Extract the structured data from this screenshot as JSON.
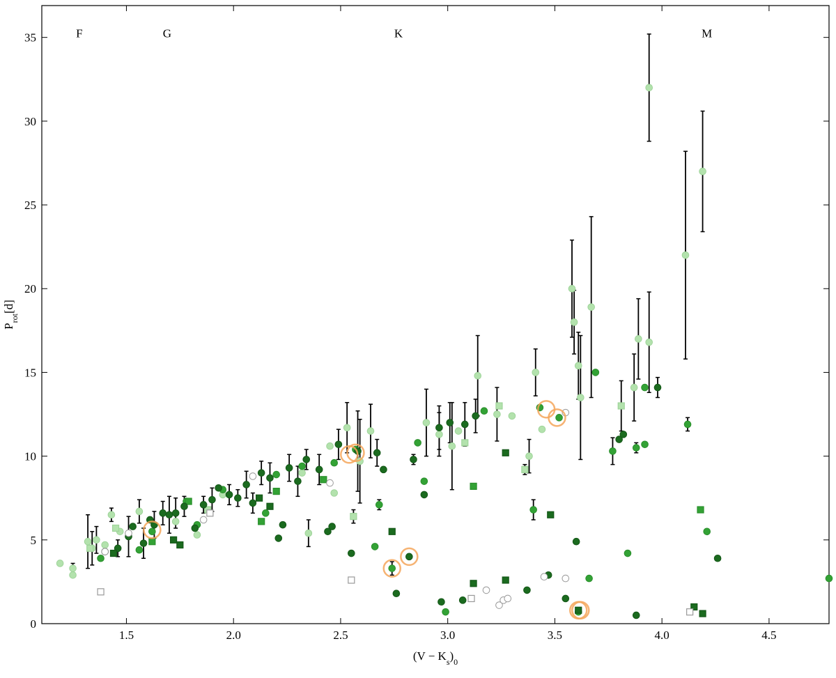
{
  "chart_data": {
    "type": "scatter",
    "xlabel": [
      {
        "text": "(V − K"
      },
      {
        "text": "s",
        "sub": true
      },
      {
        "text": ")"
      },
      {
        "text": "0",
        "sub": true
      }
    ],
    "ylabel": [
      {
        "text": "P"
      },
      {
        "text": "rot",
        "sub": true
      },
      {
        "text": "[d]"
      }
    ],
    "xlim": [
      1.105,
      4.78
    ],
    "ylim": [
      0,
      36.9
    ],
    "xticks": [
      1.5,
      {
        "value": 2,
        "label": "2.0"
      },
      2.5,
      {
        "value": 3,
        "label": "3.0"
      },
      3.5,
      {
        "value": 4,
        "label": "4.0"
      },
      4.5
    ],
    "yticks": [
      0,
      5,
      10,
      15,
      20,
      25,
      30,
      35
    ],
    "annotations": [
      {
        "text": "F",
        "x": 1.28,
        "y": 35
      },
      {
        "text": "G",
        "x": 1.69,
        "y": 35
      },
      {
        "text": "K",
        "x": 2.77,
        "y": 35
      },
      {
        "text": "M",
        "x": 4.21,
        "y": 35
      }
    ],
    "series": [
      {
        "marker": "circle",
        "color": "#b3e2ad",
        "edgecolor": "#9fd49a",
        "x": [
          1.19,
          1.25,
          1.25,
          1.32,
          1.34,
          1.36,
          1.4,
          1.43,
          1.47,
          1.56,
          1.73,
          1.83,
          2.35,
          2.45,
          2.47,
          2.53,
          2.59,
          2.64,
          2.9,
          2.96,
          3.02,
          3.05,
          3.14,
          3.23,
          3.3,
          3.38,
          3.41,
          3.44,
          3.58,
          3.59,
          3.61,
          3.62,
          3.67,
          3.87,
          3.89,
          3.94,
          3.94,
          4.11,
          4.19,
          1.95,
          2.32
        ],
        "y": [
          3.6,
          3.3,
          2.9,
          4.9,
          4.5,
          5.0,
          4.7,
          6.5,
          5.5,
          6.7,
          6.1,
          5.3,
          5.4,
          10.6,
          7.8,
          11.7,
          9.7,
          11.5,
          12.0,
          11.3,
          10.6,
          11.5,
          14.8,
          12.5,
          12.4,
          10.0,
          15.0,
          11.6,
          20.0,
          18.0,
          15.4,
          13.5,
          18.9,
          14.1,
          17.0,
          16.8,
          32.0,
          22.0,
          27.0,
          7.7,
          9.0
        ],
        "errors": [
          null,
          0.3,
          null,
          1.6,
          1.0,
          0.8,
          null,
          0.4,
          null,
          0.7,
          null,
          null,
          0.8,
          null,
          null,
          1.5,
          2.5,
          1.6,
          2.0,
          1.3,
          2.6,
          null,
          2.4,
          1.6,
          null,
          1.0,
          1.4,
          null,
          2.9,
          1.9,
          2.0,
          3.7,
          5.4,
          2.0,
          2.4,
          3.0,
          3.2,
          6.2,
          3.6,
          null,
          null
        ]
      },
      {
        "marker": "square",
        "color": "#b3e2ad",
        "edgecolor": "#9fd49a",
        "x": [
          1.88,
          2.56,
          3.08,
          3.36,
          3.81,
          3.24,
          1.33,
          1.45
        ],
        "y": [
          6.8,
          6.4,
          10.8,
          9.2,
          13.0,
          13.0,
          4.5,
          5.7
        ],
        "errors": [
          null,
          0.4,
          null,
          0.3,
          1.5,
          null,
          null,
          null
        ]
      },
      {
        "marker": "circle",
        "color": "#33a235",
        "edgecolor": "#2a8f2c",
        "x": [
          1.38,
          1.56,
          1.62,
          1.78,
          1.83,
          2.15,
          2.2,
          2.47,
          2.57,
          2.66,
          2.68,
          2.74,
          2.86,
          2.89,
          2.99,
          3.17,
          3.4,
          3.43,
          3.52,
          3.61,
          3.66,
          3.69,
          3.77,
          3.84,
          3.88,
          3.92,
          3.92,
          4.12,
          4.21,
          4.78,
          2.32,
          1.95
        ],
        "y": [
          3.9,
          4.4,
          5.5,
          7.3,
          5.9,
          6.6,
          8.9,
          9.6,
          10.4,
          4.6,
          7.1,
          3.3,
          10.8,
          8.5,
          0.7,
          12.7,
          6.8,
          12.9,
          12.3,
          0.7,
          2.7,
          15.0,
          10.3,
          4.2,
          10.5,
          14.1,
          10.7,
          11.9,
          5.5,
          2.7,
          9.4,
          8.0
        ],
        "errors": [
          null,
          null,
          null,
          null,
          null,
          null,
          null,
          null,
          null,
          null,
          0.3,
          0.4,
          null,
          null,
          null,
          null,
          0.6,
          null,
          null,
          null,
          null,
          null,
          0.8,
          null,
          0.3,
          null,
          null,
          0.4,
          null,
          null,
          null,
          null
        ]
      },
      {
        "marker": "square",
        "color": "#33a235",
        "edgecolor": "#2a8f2c",
        "x": [
          1.62,
          1.79,
          2.13,
          2.2,
          3.12,
          4.18,
          2.42
        ],
        "y": [
          4.9,
          7.3,
          6.1,
          7.9,
          8.2,
          6.8,
          8.6
        ]
      },
      {
        "marker": "circle",
        "color": "#1b6b1f",
        "edgecolor": "#145717",
        "x": [
          1.4,
          1.46,
          1.51,
          1.53,
          1.58,
          1.61,
          1.63,
          1.67,
          1.7,
          1.73,
          1.77,
          1.82,
          1.86,
          1.9,
          1.93,
          1.98,
          2.02,
          2.06,
          2.09,
          2.13,
          2.17,
          2.21,
          2.23,
          2.26,
          2.3,
          2.34,
          2.4,
          2.44,
          2.46,
          2.49,
          2.55,
          2.58,
          2.67,
          2.7,
          2.76,
          2.82,
          2.84,
          2.89,
          2.96,
          2.97,
          3.01,
          3.07,
          3.08,
          3.13,
          3.37,
          3.47,
          3.55,
          3.6,
          3.8,
          3.82,
          3.88,
          3.98,
          4.26
        ],
        "y": [
          4.3,
          4.5,
          5.2,
          5.8,
          4.8,
          6.2,
          5.9,
          6.6,
          6.5,
          6.6,
          7.0,
          5.7,
          7.1,
          7.4,
          8.1,
          7.7,
          7.5,
          8.3,
          7.2,
          9.0,
          8.7,
          5.1,
          5.9,
          9.3,
          8.5,
          9.8,
          9.2,
          5.5,
          5.8,
          10.7,
          4.2,
          10.3,
          10.2,
          9.2,
          1.8,
          4.0,
          9.8,
          7.7,
          11.7,
          1.3,
          12.0,
          1.4,
          11.9,
          12.4,
          2.0,
          2.9,
          1.5,
          4.9,
          11.0,
          11.3,
          0.5,
          14.1,
          3.9
        ],
        "errors": [
          null,
          0.5,
          1.2,
          null,
          0.9,
          null,
          0.8,
          0.7,
          1.1,
          0.9,
          0.6,
          null,
          0.5,
          0.7,
          null,
          0.6,
          0.5,
          0.8,
          0.6,
          0.7,
          0.9,
          null,
          null,
          0.8,
          0.9,
          0.6,
          0.9,
          null,
          null,
          0.9,
          null,
          2.4,
          0.8,
          null,
          null,
          null,
          0.3,
          null,
          1.3,
          null,
          1.2,
          null,
          1.3,
          1.0,
          null,
          null,
          null,
          null,
          null,
          null,
          null,
          0.6,
          null
        ]
      },
      {
        "marker": "square",
        "color": "#1b6b1f",
        "edgecolor": "#145717",
        "x": [
          1.44,
          1.72,
          1.75,
          2.12,
          2.17,
          2.74,
          3.12,
          3.27,
          3.27,
          3.48,
          3.61,
          4.15,
          4.19
        ],
        "y": [
          4.2,
          5.0,
          4.7,
          7.5,
          7.0,
          5.5,
          2.4,
          2.6,
          10.2,
          6.5,
          0.8,
          1.0,
          0.6
        ]
      },
      {
        "marker": "open-circle",
        "color": "#ffffff",
        "edgecolor": "#999999",
        "x": [
          1.4,
          1.51,
          1.86,
          2.09,
          2.45,
          3.18,
          3.24,
          3.26,
          3.28,
          3.45,
          3.55,
          3.55
        ],
        "y": [
          4.3,
          5.4,
          6.2,
          8.8,
          8.4,
          2.0,
          1.1,
          1.4,
          1.5,
          2.8,
          2.7,
          12.6
        ]
      },
      {
        "marker": "open-square",
        "color": "#ffffff",
        "edgecolor": "#999999",
        "x": [
          1.38,
          1.89,
          2.55,
          3.11,
          4.13
        ],
        "y": [
          1.9,
          6.6,
          2.6,
          1.5,
          0.7
        ]
      },
      {
        "marker": "ring",
        "color": "none",
        "edgecolor": "#f5a65b",
        "x": [
          1.62,
          2.54,
          2.57,
          2.74,
          2.82,
          3.46,
          3.51,
          3.61,
          3.62
        ],
        "y": [
          5.6,
          10.1,
          10.2,
          3.3,
          4.0,
          12.8,
          12.3,
          0.8,
          0.8
        ]
      }
    ]
  }
}
